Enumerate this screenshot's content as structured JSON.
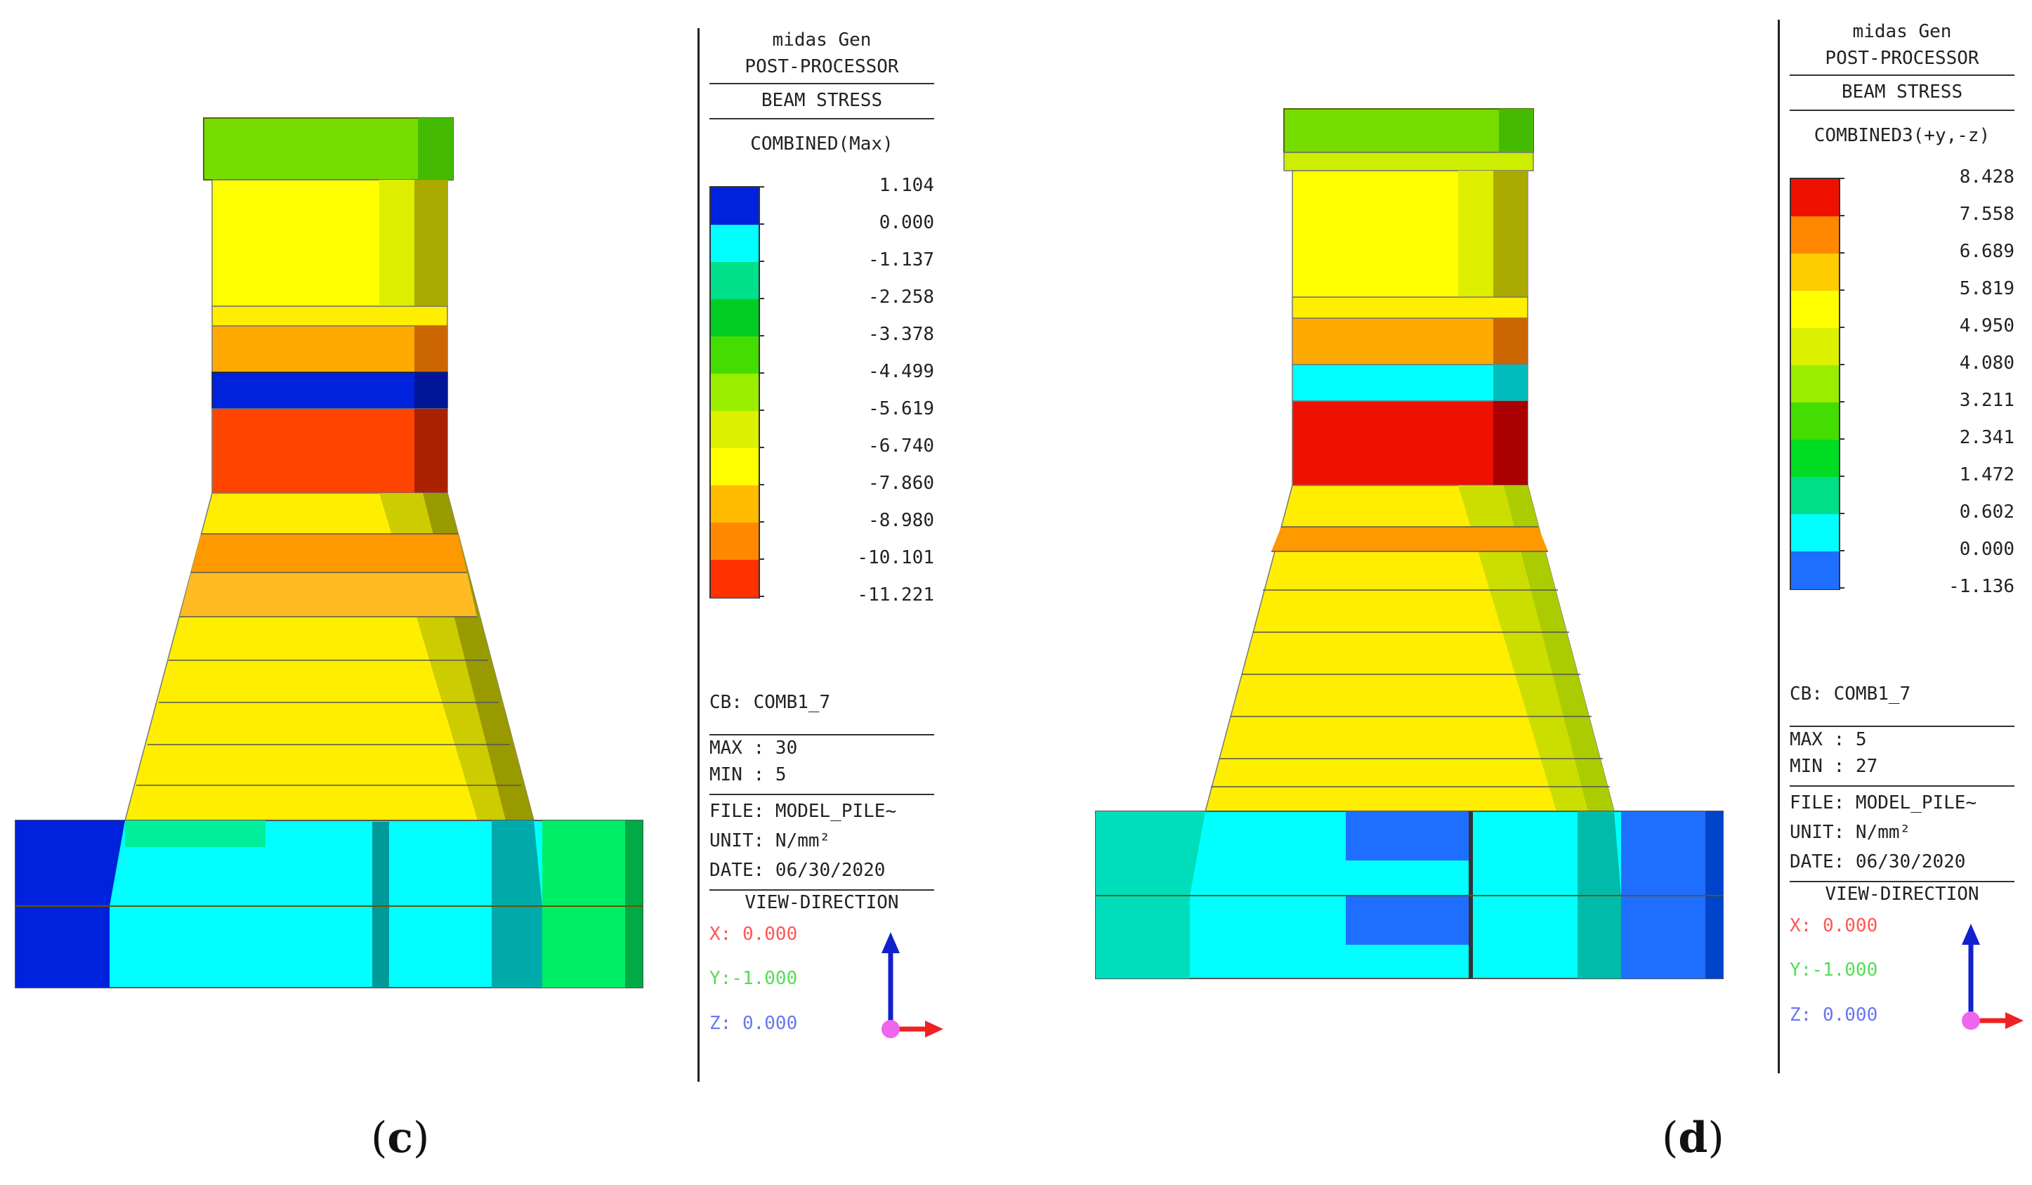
{
  "panels": [
    {
      "id": "c",
      "caption_letter": "c",
      "header": {
        "program": "midas Gen",
        "module": "POST-PROCESSOR",
        "result": "BEAM STRESS",
        "component": "COMBINED(Max)"
      },
      "scale_values": [
        "1.104",
        "0.000",
        "-1.137",
        "-2.258",
        "-3.378",
        "-4.499",
        "-5.619",
        "-6.740",
        "-7.860",
        "-8.980",
        "-10.101",
        "-11.221"
      ],
      "scale_colors": [
        "#0022dd",
        "#00ffff",
        "#00e08a",
        "#00cc22",
        "#44dd00",
        "#99ee00",
        "#ddf000",
        "#ffff00",
        "#ffbb00",
        "#ff8800",
        "#ff3300"
      ],
      "cb": "CB: COMB1_7",
      "max": "MAX : 30",
      "min": "MIN : 5",
      "file": "FILE: MODEL_PILE~",
      "unit": "UNIT: N/mm²",
      "date": "DATE: 06/30/2020",
      "view_title": "VIEW-DIRECTION",
      "view_x": "X: 0.000",
      "view_y": "Y:-1.000",
      "view_z": "Z: 0.000"
    },
    {
      "id": "d",
      "caption_letter": "d",
      "header": {
        "program": "midas Gen",
        "module": "POST-PROCESSOR",
        "result": "BEAM STRESS",
        "component": "COMBINED3(+y,-z)"
      },
      "scale_values": [
        "8.428",
        "7.558",
        "6.689",
        "5.819",
        "4.950",
        "4.080",
        "3.211",
        "2.341",
        "1.472",
        "0.602",
        "0.000",
        "-1.136"
      ],
      "scale_colors": [
        "#ee1100",
        "#ff8800",
        "#ffcc00",
        "#ffff00",
        "#ddf000",
        "#99ee00",
        "#44dd00",
        "#00dd22",
        "#00e08a",
        "#00ffff",
        "#1e6fff"
      ],
      "cb": "CB: COMB1_7",
      "max": "MAX : 5",
      "min": "MIN : 27",
      "file": "FILE: MODEL_PILE~",
      "unit": "UNIT: N/mm²",
      "date": "DATE: 06/30/2020",
      "view_title": "VIEW-DIRECTION",
      "view_x": "X: 0.000",
      "view_y": "Y:-1.000",
      "view_z": "Z: 0.000"
    }
  ],
  "colors": {
    "view_x": "#ff5555",
    "view_y": "#55dd55",
    "view_z": "#6677ee",
    "axis_up": "#1122cc",
    "axis_right": "#ee2222",
    "origin": "#ee66ee"
  }
}
